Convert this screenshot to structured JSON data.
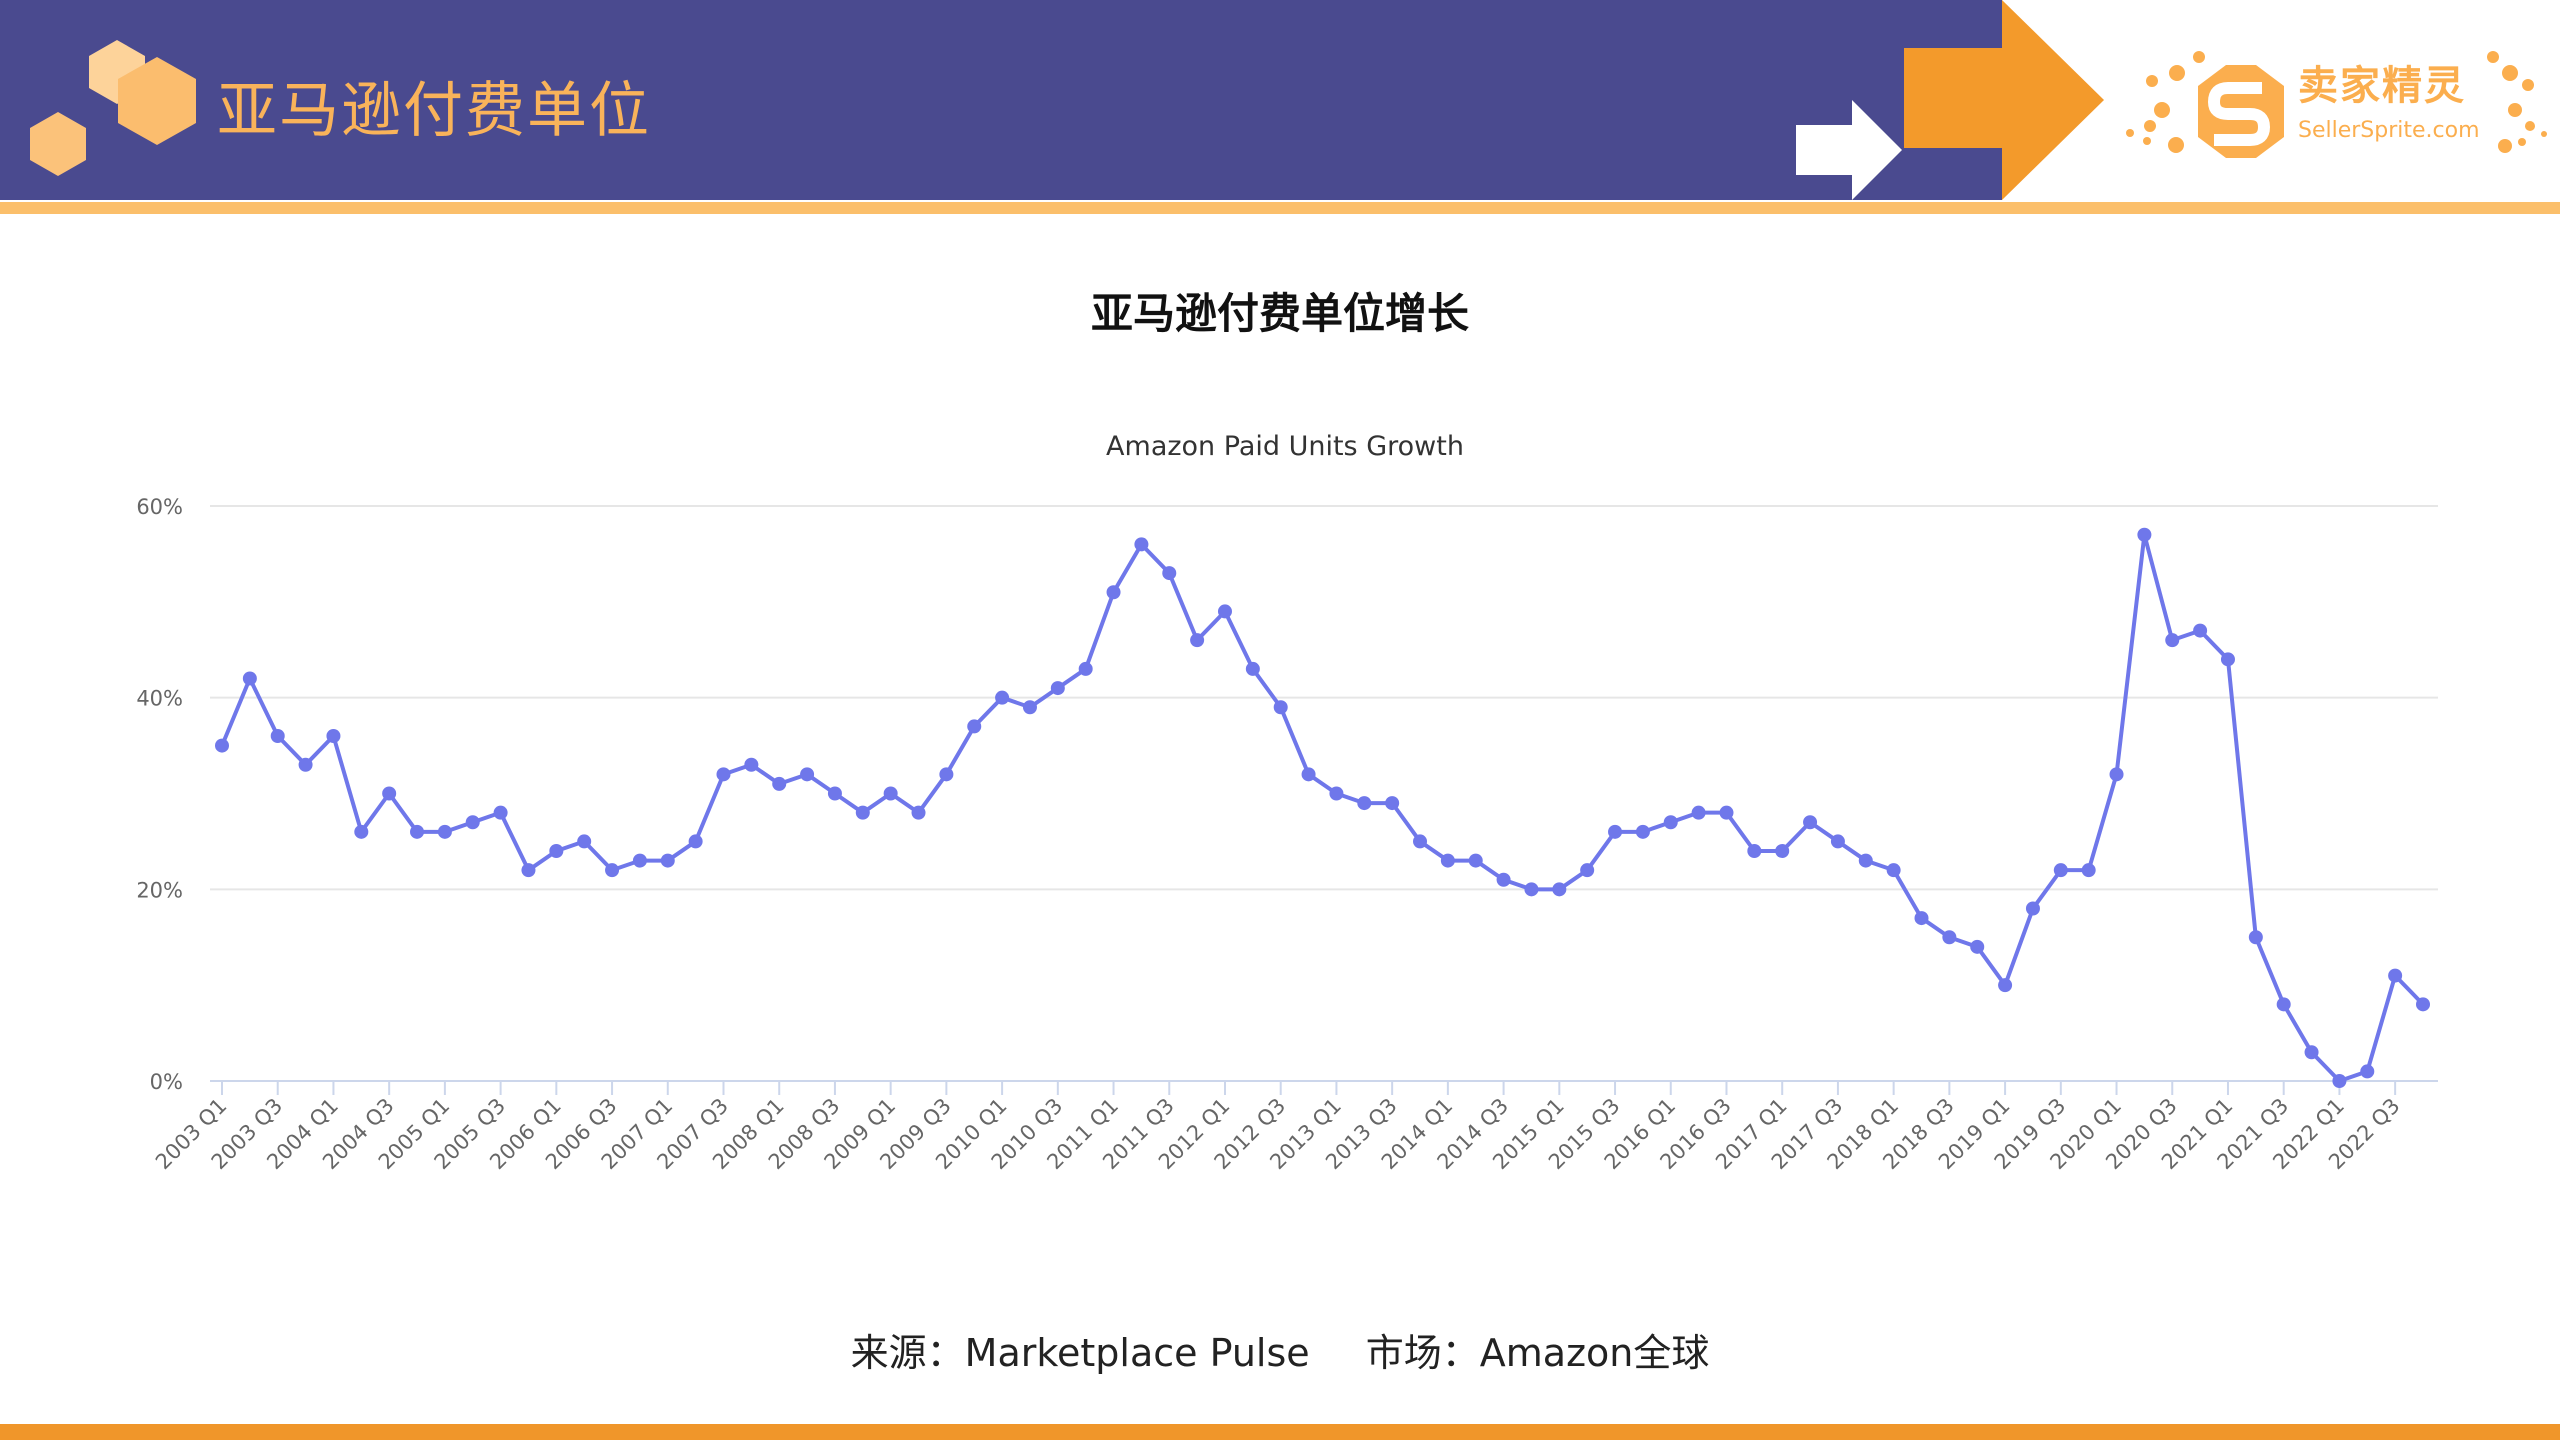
{
  "header": {
    "title": "亚马逊付费单位",
    "logo_cn": "卖家精灵",
    "logo_en": "SellerSprite.com",
    "colors": {
      "band": "#4a4a8f",
      "accent": "#f39a2b",
      "title": "#f9b35a"
    }
  },
  "page_title": "亚马逊付费单位增长",
  "footer": {
    "source": "来源：Marketplace Pulse",
    "market": "市场：Amazon全球"
  },
  "chart_data": {
    "type": "line",
    "title": "Amazon Paid Units Growth",
    "xlabel": "",
    "ylabel": "",
    "ylim": [
      0,
      60
    ],
    "yticks": [
      "0%",
      "20%",
      "40%",
      "60%"
    ],
    "grid": true,
    "color": "#6f77ea",
    "x": [
      "2003 Q1",
      "2003 Q2",
      "2003 Q3",
      "2003 Q4",
      "2004 Q1",
      "2004 Q2",
      "2004 Q3",
      "2004 Q4",
      "2005 Q1",
      "2005 Q2",
      "2005 Q3",
      "2005 Q4",
      "2006 Q1",
      "2006 Q2",
      "2006 Q3",
      "2006 Q4",
      "2007 Q1",
      "2007 Q2",
      "2007 Q3",
      "2007 Q4",
      "2008 Q1",
      "2008 Q2",
      "2008 Q3",
      "2008 Q4",
      "2009 Q1",
      "2009 Q2",
      "2009 Q3",
      "2009 Q4",
      "2010 Q1",
      "2010 Q2",
      "2010 Q3",
      "2010 Q4",
      "2011 Q1",
      "2011 Q2",
      "2011 Q3",
      "2011 Q4",
      "2012 Q1",
      "2012 Q2",
      "2012 Q3",
      "2012 Q4",
      "2013 Q1",
      "2013 Q2",
      "2013 Q3",
      "2013 Q4",
      "2014 Q1",
      "2014 Q2",
      "2014 Q3",
      "2014 Q4",
      "2015 Q1",
      "2015 Q2",
      "2015 Q3",
      "2015 Q4",
      "2016 Q1",
      "2016 Q2",
      "2016 Q3",
      "2016 Q4",
      "2017 Q1",
      "2017 Q2",
      "2017 Q3",
      "2017 Q4",
      "2018 Q1",
      "2018 Q2",
      "2018 Q3",
      "2018 Q4",
      "2019 Q1",
      "2019 Q2",
      "2019 Q3",
      "2019 Q4",
      "2020 Q1",
      "2020 Q2",
      "2020 Q3",
      "2020 Q4",
      "2021 Q1",
      "2021 Q2",
      "2021 Q3",
      "2021 Q4",
      "2022 Q1",
      "2022 Q2",
      "2022 Q3",
      "2022 Q4"
    ],
    "xticks": [
      "2003 Q1",
      "2003 Q3",
      "2004 Q1",
      "2004 Q3",
      "2005 Q1",
      "2005 Q3",
      "2006 Q1",
      "2006 Q3",
      "2007 Q1",
      "2007 Q3",
      "2008 Q1",
      "2008 Q3",
      "2009 Q1",
      "2009 Q3",
      "2010 Q1",
      "2010 Q3",
      "2011 Q1",
      "2011 Q3",
      "2012 Q1",
      "2012 Q3",
      "2013 Q1",
      "2013 Q3",
      "2014 Q1",
      "2014 Q3",
      "2015 Q1",
      "2015 Q3",
      "2016 Q1",
      "2016 Q3",
      "2017 Q1",
      "2017 Q3",
      "2018 Q1",
      "2018 Q3",
      "2019 Q1",
      "2019 Q3",
      "2020 Q1",
      "2020 Q3",
      "2021 Q1",
      "2021 Q3",
      "2022 Q1",
      "2022 Q3"
    ],
    "values": [
      35,
      42,
      36,
      33,
      36,
      26,
      30,
      26,
      26,
      27,
      28,
      22,
      24,
      25,
      22,
      23,
      23,
      25,
      32,
      33,
      31,
      32,
      30,
      28,
      30,
      28,
      32,
      37,
      40,
      39,
      41,
      43,
      51,
      56,
      53,
      46,
      49,
      43,
      39,
      32,
      30,
      29,
      29,
      25,
      23,
      23,
      21,
      20,
      20,
      22,
      26,
      26,
      27,
      28,
      28,
      24,
      24,
      27,
      25,
      23,
      22,
      17,
      15,
      14,
      10,
      18,
      22,
      22,
      32,
      57,
      46,
      47,
      44,
      15,
      8,
      3,
      0,
      1,
      11,
      8
    ]
  }
}
